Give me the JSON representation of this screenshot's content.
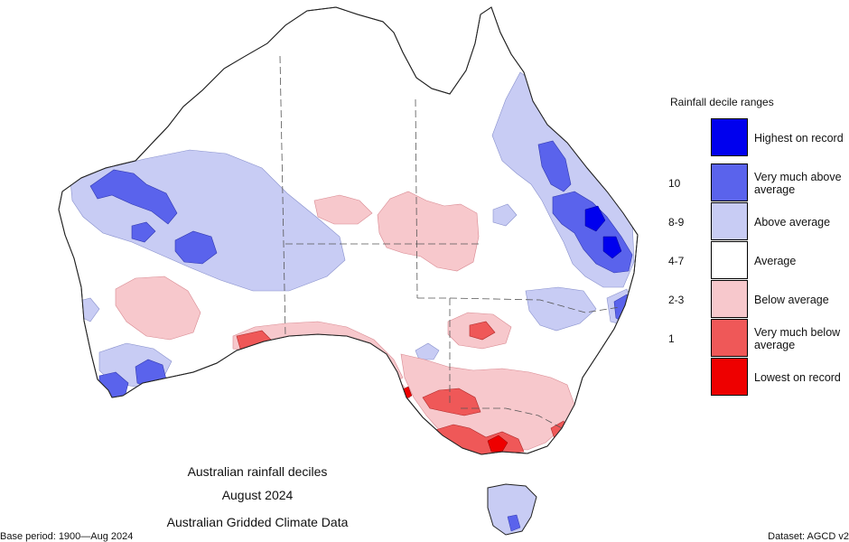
{
  "legend": {
    "title": "Rainfall decile ranges",
    "items": [
      {
        "decile": "",
        "label": "Highest on record",
        "color": "#0000ee"
      },
      {
        "decile": "10",
        "label": "Very much above average",
        "color": "#5a63ec"
      },
      {
        "decile": "8-9",
        "label": "Above average",
        "color": "#c8ccf4"
      },
      {
        "decile": "4-7",
        "label": "Average",
        "color": "#ffffff"
      },
      {
        "decile": "2-3",
        "label": "Below average",
        "color": "#f7c8cc"
      },
      {
        "decile": "1",
        "label": "Very much below average",
        "color": "#ef5858"
      },
      {
        "decile": "",
        "label": "Lowest on record",
        "color": "#ee0000"
      }
    ]
  },
  "caption": {
    "line1": "Australian rainfall deciles",
    "line2": "August 2024",
    "line3": "Australian Gridded Climate Data"
  },
  "footer": {
    "base_period": "Base period: 1900—Aug 2024",
    "dataset": "Dataset: AGCD v2"
  }
}
